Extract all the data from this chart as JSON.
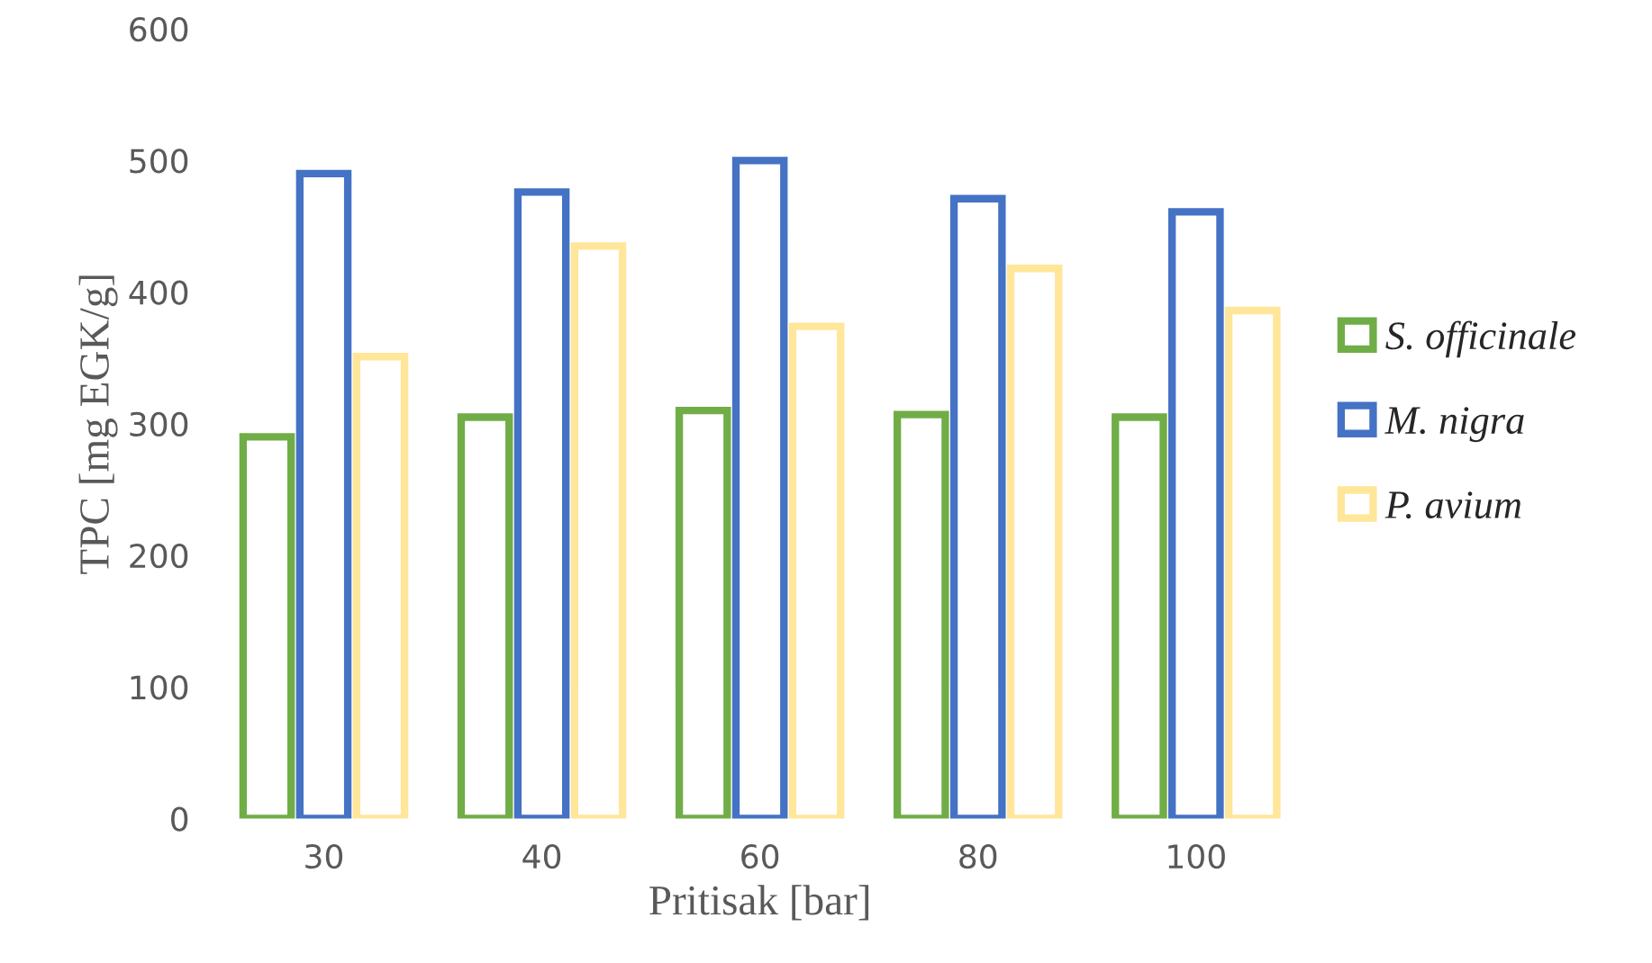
{
  "chart_data": {
    "type": "bar",
    "xlabel": "Pritisak [bar]",
    "ylabel": "TPC [mg EGK/g]",
    "categories": [
      "30",
      "40",
      "60",
      "80",
      "100"
    ],
    "series": [
      {
        "name": "S. officinale",
        "color": "#70ad47",
        "values": [
          290,
          305,
          310,
          307,
          305
        ]
      },
      {
        "name": "M. nigra",
        "color": "#4472c4",
        "values": [
          490,
          476,
          500,
          471,
          461
        ]
      },
      {
        "name": "P. avium",
        "color": "#ffe699",
        "values": [
          351,
          435,
          374,
          418,
          386
        ]
      }
    ],
    "ylim": [
      0,
      600
    ],
    "yticks": [
      0,
      100,
      200,
      300,
      400,
      500,
      600
    ],
    "grid": false,
    "legend": "right"
  }
}
